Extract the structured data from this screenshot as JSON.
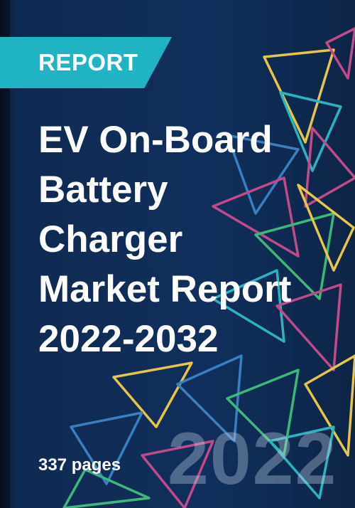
{
  "badge": "REPORT",
  "title_lines": [
    "EV On-Board",
    "Battery",
    "Charger",
    "Market Report",
    "2022-2032"
  ],
  "pages": "337 pages",
  "year": "2022"
}
